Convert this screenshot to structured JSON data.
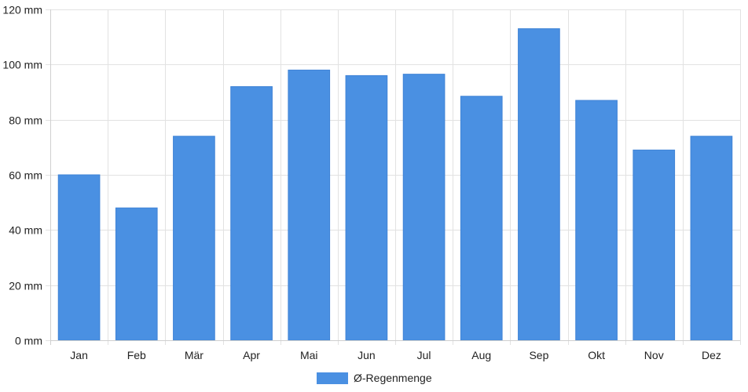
{
  "chart_data": {
    "type": "bar",
    "categories": [
      "Jan",
      "Feb",
      "Mär",
      "Apr",
      "Mai",
      "Jun",
      "Jul",
      "Aug",
      "Sep",
      "Okt",
      "Nov",
      "Dez"
    ],
    "series": [
      {
        "name": "Ø-Regenmenge",
        "values": [
          60,
          48,
          74,
          92,
          98,
          96,
          96.5,
          88.5,
          113,
          87,
          69,
          74
        ],
        "color": "#4a90e2"
      }
    ],
    "y_unit": "mm",
    "ylim": [
      0,
      120
    ],
    "yticks": [
      0,
      20,
      40,
      60,
      80,
      100,
      120
    ],
    "ytick_labels": [
      "0 mm",
      "20 mm",
      "40 mm",
      "60 mm",
      "80 mm",
      "100 mm",
      "120 mm"
    ],
    "grid": true,
    "legend_position": "bottom-center"
  }
}
